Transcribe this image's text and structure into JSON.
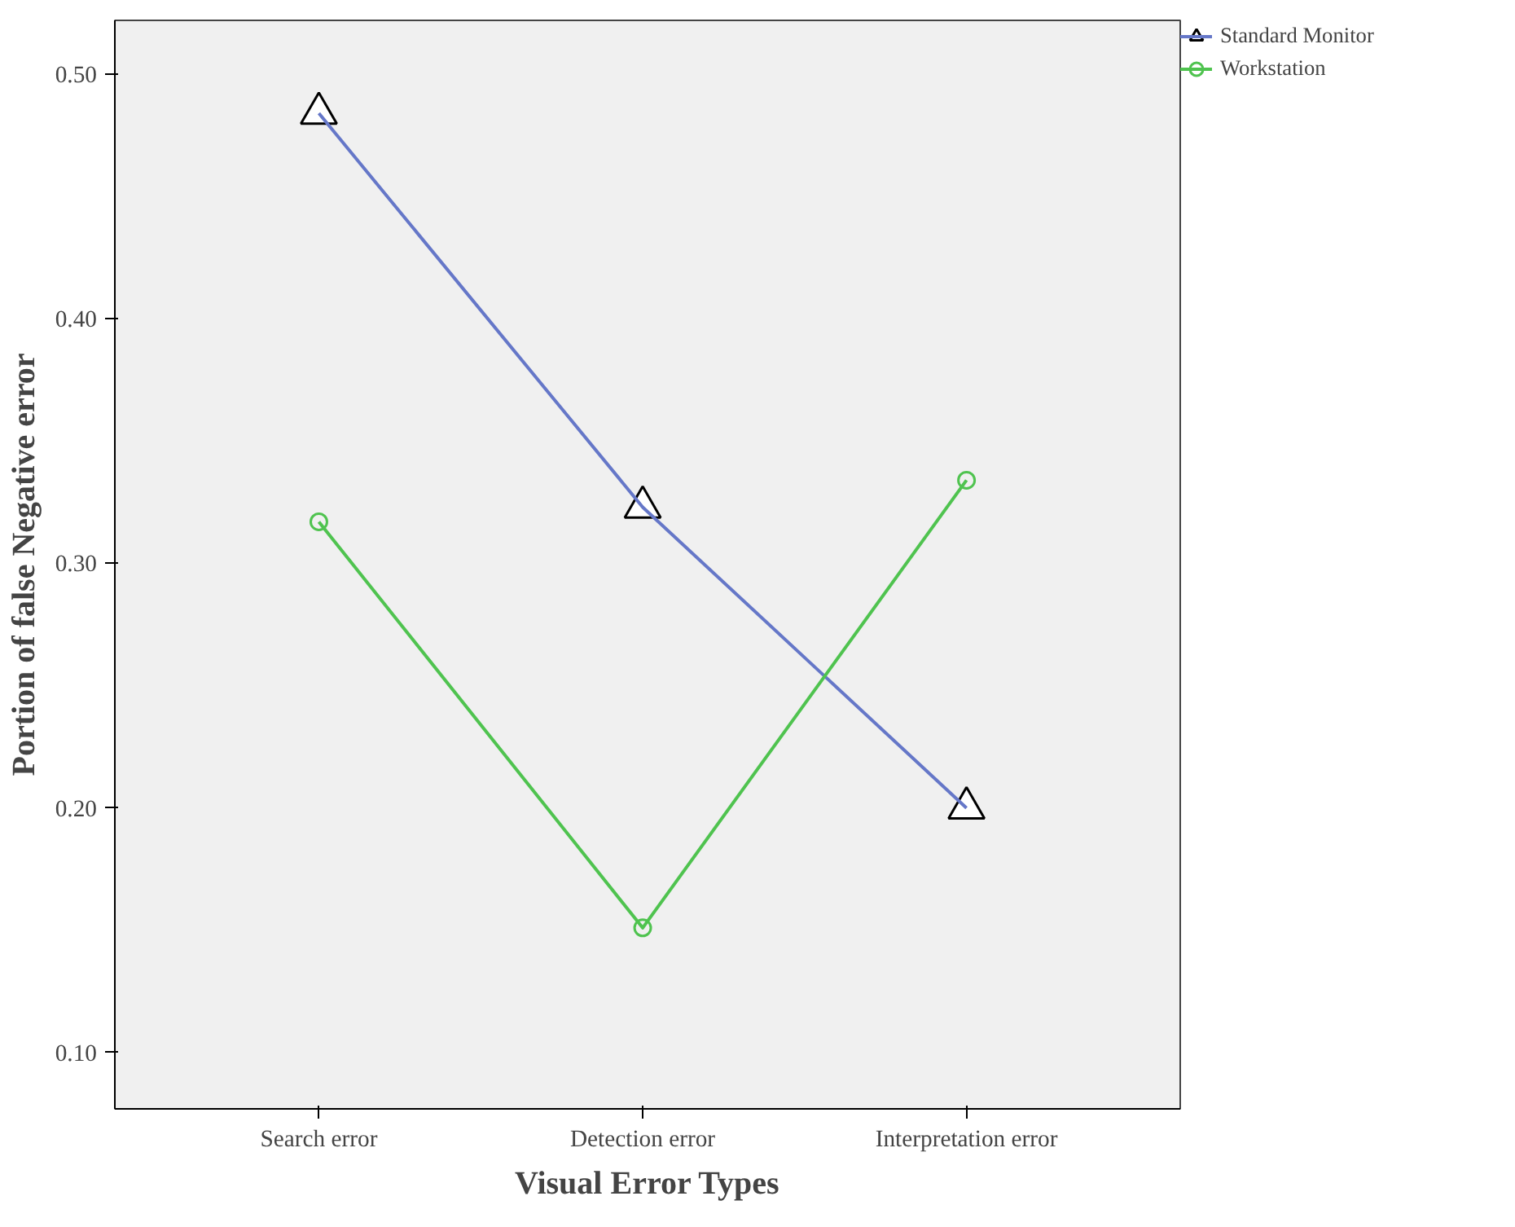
{
  "chart_data": {
    "type": "line",
    "xlabel": "Visual Error Types",
    "ylabel": "Portion of false Negative error",
    "categories": [
      "Search error",
      "Detection error",
      "Interpretation error"
    ],
    "series": [
      {
        "name": "Standard Monitor",
        "color": "#6577c8",
        "values": [
          0.484,
          0.323,
          0.2
        ],
        "marker": "triangle"
      },
      {
        "name": "Workstation",
        "color": "#4fc34f",
        "values": [
          0.317,
          0.151,
          0.334
        ],
        "marker": "circle"
      }
    ],
    "ylim": [
      0.077,
      0.522
    ],
    "yticks": [
      {
        "value": 0.1,
        "label": "0.10"
      },
      {
        "value": 0.2,
        "label": "0.20"
      },
      {
        "value": 0.3,
        "label": "0.30"
      },
      {
        "value": 0.4,
        "label": "0.40"
      },
      {
        "value": 0.5,
        "label": "0.50"
      }
    ],
    "grid": false,
    "legend": "top right"
  }
}
